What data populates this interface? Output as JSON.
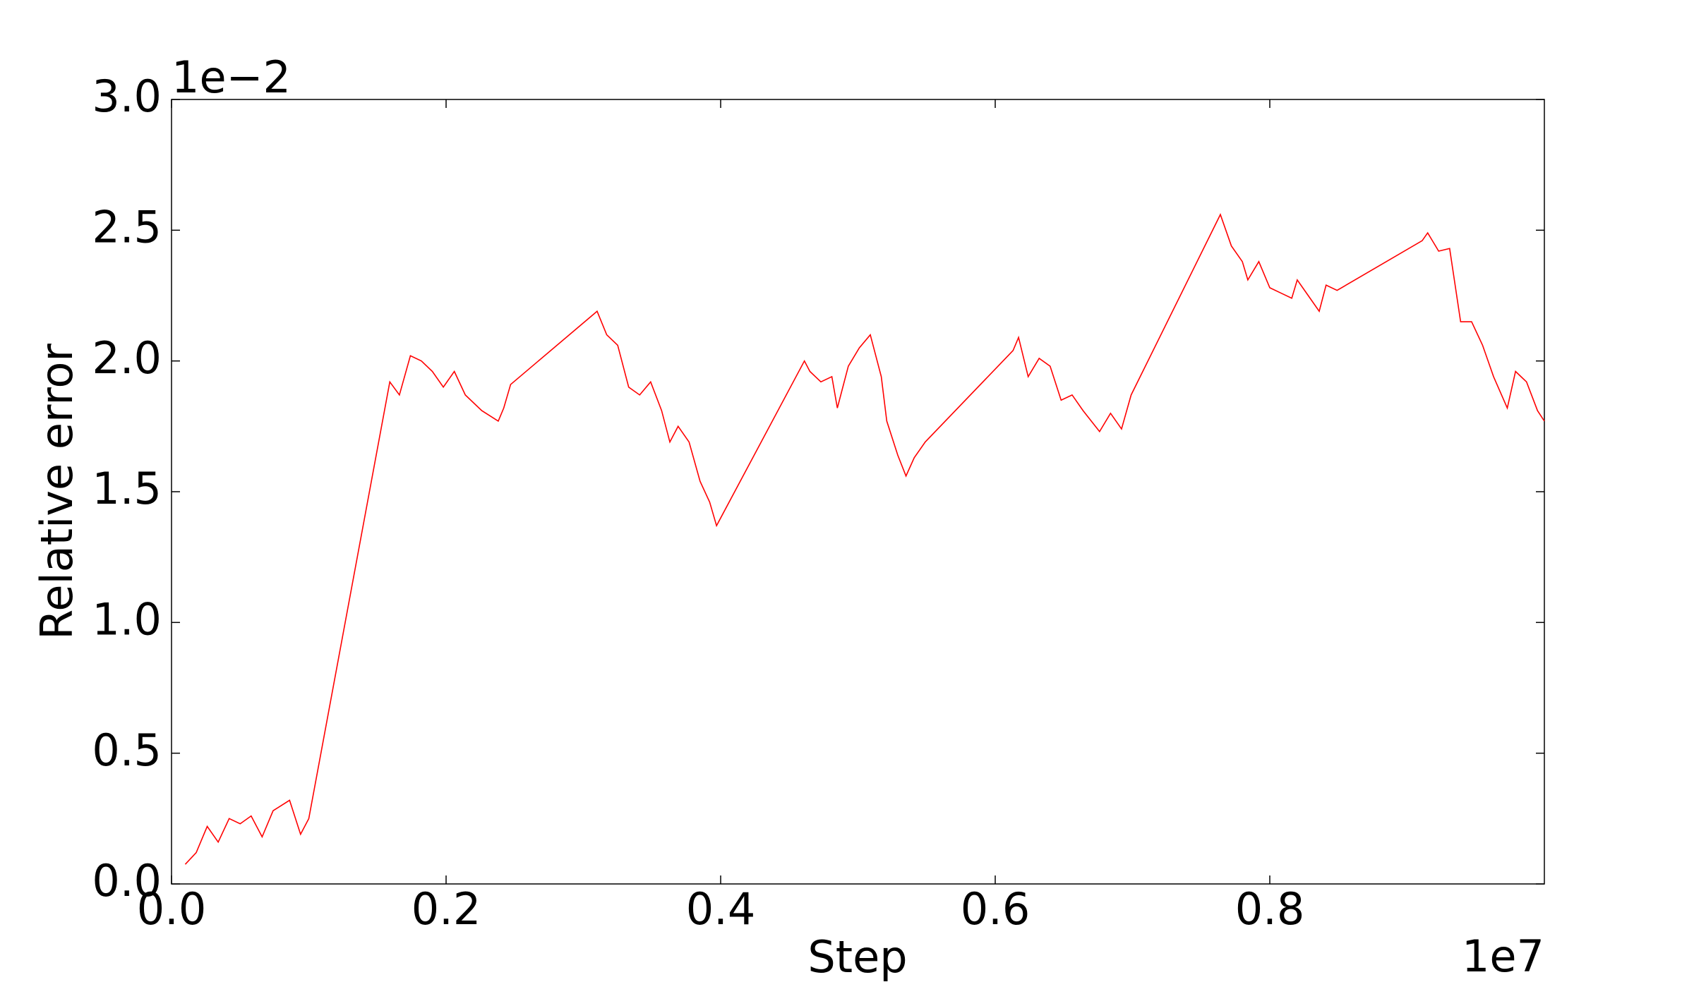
{
  "chart_data": {
    "type": "line",
    "x_label": "Step",
    "y_label": "Relative error",
    "x_offset_label": "1e7",
    "y_offset_label": "1e−2",
    "xlim": [
      0,
      1
    ],
    "ylim": [
      0,
      3
    ],
    "xticks": [
      {
        "value": 0,
        "label": "0.0"
      },
      0.2,
      0.4,
      0.6,
      0.8
    ],
    "yticks": [
      {
        "value": 0,
        "label": "0.0"
      },
      0.5,
      {
        "value": 1,
        "label": "1.0"
      },
      1.5,
      {
        "value": 2,
        "label": "2.0"
      },
      2.5,
      {
        "value": 3,
        "label": "3.0"
      }
    ],
    "grid": false,
    "series": [
      {
        "color": "#ff0000",
        "x": [
          0.01,
          0.018,
          0.026,
          0.034,
          0.042,
          0.05,
          0.058,
          0.066,
          0.074,
          0.086,
          0.094,
          0.1,
          0.159,
          0.166,
          0.174,
          0.182,
          0.19,
          0.198,
          0.206,
          0.214,
          0.226,
          0.238,
          0.242,
          0.247,
          0.31,
          0.317,
          0.325,
          0.333,
          0.341,
          0.349,
          0.357,
          0.363,
          0.369,
          0.377,
          0.385,
          0.392,
          0.397,
          0.461,
          0.465,
          0.473,
          0.481,
          0.485,
          0.493,
          0.501,
          0.509,
          0.517,
          0.521,
          0.529,
          0.535,
          0.541,
          0.549,
          0.613,
          0.617,
          0.624,
          0.632,
          0.64,
          0.648,
          0.656,
          0.664,
          0.676,
          0.684,
          0.692,
          0.699,
          0.764,
          0.772,
          0.78,
          0.784,
          0.792,
          0.8,
          0.808,
          0.816,
          0.82,
          0.828,
          0.836,
          0.841,
          0.849,
          0.911,
          0.915,
          0.923,
          0.931,
          0.939,
          0.947,
          0.955,
          0.963,
          0.973,
          0.979,
          0.987,
          0.995,
          1.0
        ],
        "values": [
          0.075,
          0.12,
          0.22,
          0.16,
          0.25,
          0.23,
          0.26,
          0.18,
          0.28,
          0.32,
          0.19,
          0.25,
          1.92,
          1.87,
          2.02,
          2.0,
          1.96,
          1.9,
          1.96,
          1.87,
          1.81,
          1.77,
          1.82,
          1.91,
          2.19,
          2.1,
          2.06,
          1.9,
          1.87,
          1.92,
          1.81,
          1.69,
          1.75,
          1.69,
          1.54,
          1.46,
          1.37,
          2.0,
          1.96,
          1.92,
          1.94,
          1.82,
          1.98,
          2.05,
          2.1,
          1.94,
          1.77,
          1.64,
          1.56,
          1.63,
          1.69,
          2.04,
          2.09,
          1.94,
          2.01,
          1.98,
          1.85,
          1.87,
          1.81,
          1.73,
          1.8,
          1.74,
          1.87,
          2.56,
          2.44,
          2.38,
          2.31,
          2.38,
          2.28,
          2.26,
          2.24,
          2.31,
          2.25,
          2.19,
          2.29,
          2.27,
          2.46,
          2.49,
          2.42,
          2.43,
          2.15,
          2.15,
          2.06,
          1.94,
          1.82,
          1.96,
          1.92,
          1.81,
          1.77
        ]
      }
    ]
  }
}
